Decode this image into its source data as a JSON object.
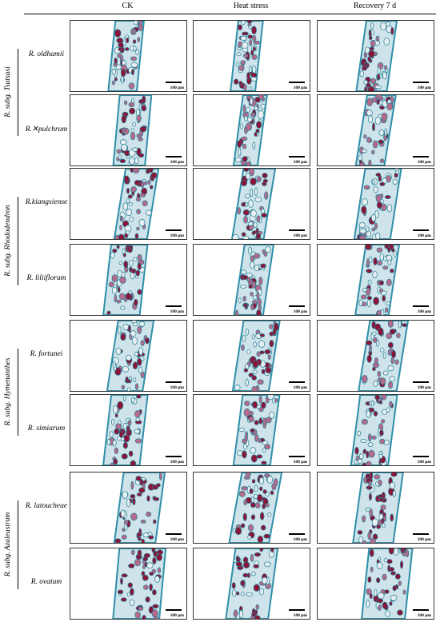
{
  "columns": [
    "CK",
    "Heat stress",
    "Recovery 7 d"
  ],
  "scale_bar": "100 μm",
  "groups": [
    {
      "label": "R. subg. Tsutsusi",
      "species": [
        "R. oldhamii",
        "R.✕pulchrum"
      ]
    },
    {
      "label": "R. subg. Rhododendron",
      "species": [
        "R.kiangsiense",
        "R. liliiflorum"
      ]
    },
    {
      "label": "R. subg. Hymenanthes",
      "species": [
        "R.  fortunei",
        "R. simiarum"
      ]
    },
    {
      "label": "R. subg. Azaleastrum",
      "species": [
        "R. latoucheae",
        "R. ovatum"
      ]
    }
  ]
}
